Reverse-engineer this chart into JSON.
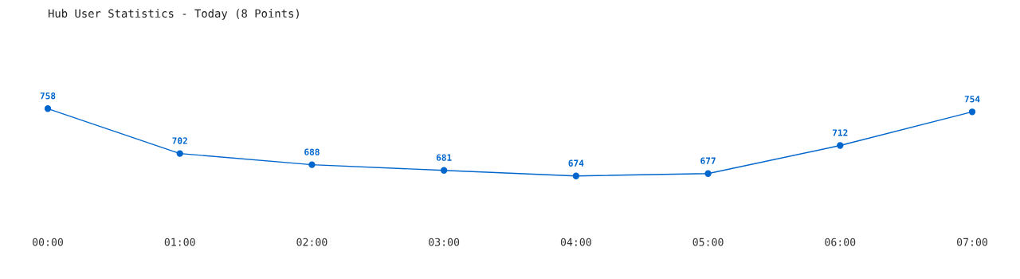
{
  "chart_data": {
    "type": "line",
    "title": "Hub User Statistics - Today (8 Points)",
    "categories": [
      "00:00",
      "01:00",
      "02:00",
      "03:00",
      "04:00",
      "05:00",
      "06:00",
      "07:00"
    ],
    "series": [
      {
        "color": "#0066cc",
        "values": [
          758,
          702,
          688,
          681,
          674,
          677,
          712,
          754
        ]
      }
    ],
    "data_labels": true,
    "marker": "circle",
    "line_style": "solid"
  }
}
